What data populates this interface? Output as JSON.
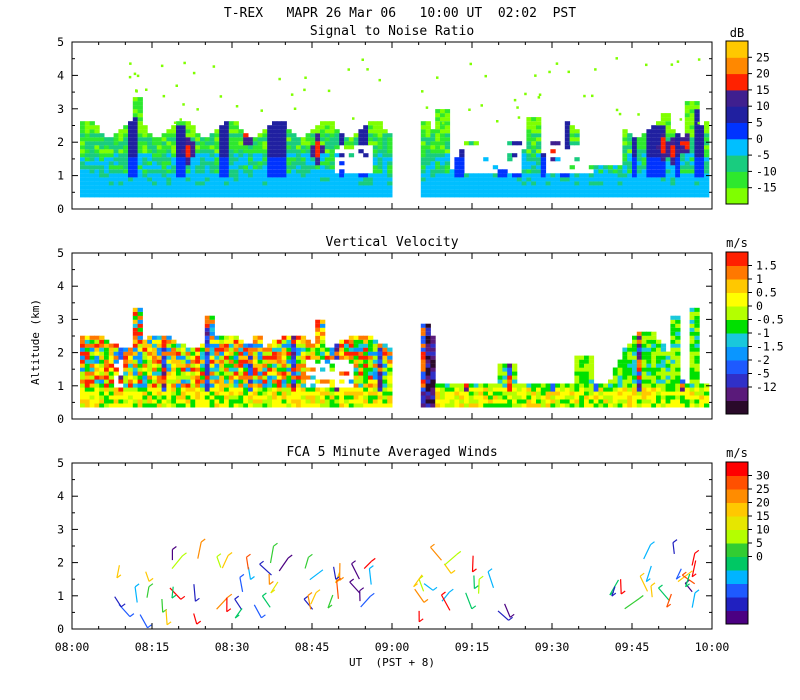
{
  "header": {
    "title": "T-REX   MAPR 26 Mar 06   10:00 UT  02:02  PST"
  },
  "colors": {
    "snr": [
      "#7fff00",
      "#2ee82e",
      "#19cc7f",
      "#00bfff",
      "#0033ff",
      "#2020a0",
      "#3f1f8f",
      "#ff2200",
      "#ff8800",
      "#ffc800"
    ],
    "velocity": [
      "#2a0a2a",
      "#5a1a7a",
      "#3030c8",
      "#1e5aff",
      "#0a96ff",
      "#19c8dc",
      "#00e000",
      "#b4ff00",
      "#ffff00",
      "#ffc800",
      "#ff7800",
      "#ff2000"
    ],
    "winds": [
      "#4b0082",
      "#2020c0",
      "#1e5aff",
      "#00b4ff",
      "#00c864",
      "#32cd32",
      "#b4ff00",
      "#e6e600",
      "#ffc800",
      "#ff8c00",
      "#ff5000",
      "#ff0000"
    ]
  },
  "chart_data": [
    {
      "type": "heatmap",
      "title": "Signal to Noise Ratio",
      "units": "dB",
      "ylabel": "",
      "xlabel": "",
      "ylim": [
        0,
        5
      ],
      "yticks": [
        "5",
        "4",
        "3",
        "2",
        "1",
        "0"
      ],
      "xlim": [
        "08:00",
        "10:00"
      ],
      "data_gap": [
        "08:59",
        "09:05"
      ],
      "colorbar_labels": [
        "25",
        "20",
        "15",
        "10",
        "5",
        "0",
        "-5",
        "-10",
        "-15"
      ]
    },
    {
      "type": "heatmap",
      "title": "Vertical Velocity",
      "units": "m/s",
      "ylabel": "Altitude (km)",
      "xlabel": "",
      "ylim": [
        0,
        5
      ],
      "yticks": [
        "5",
        "4",
        "3",
        "2",
        "1",
        "0"
      ],
      "xlim": [
        "08:00",
        "10:00"
      ],
      "data_gap": [
        "08:59",
        "09:05"
      ],
      "colorbar_labels": [
        "1.5",
        "1",
        "0.5",
        "0",
        "-0.5",
        "-1",
        "-1.5",
        "-2",
        "-5",
        "-12"
      ]
    },
    {
      "type": "scatter",
      "title": "FCA 5 Minute Averaged Winds",
      "units": "m/s",
      "ylabel": "",
      "xlabel": "UT  (PST + 8)",
      "ylim": [
        0,
        5
      ],
      "yticks": [
        "5",
        "4",
        "3",
        "2",
        "1",
        "0"
      ],
      "xlim": [
        "08:00",
        "10:00"
      ],
      "xticks": [
        "08:00",
        "08:15",
        "08:30",
        "08:45",
        "09:00",
        "09:15",
        "09:30",
        "09:45",
        "10:00"
      ],
      "colorbar_labels": [
        "30",
        "25",
        "20",
        "15",
        "10",
        "5",
        "0"
      ]
    }
  ]
}
